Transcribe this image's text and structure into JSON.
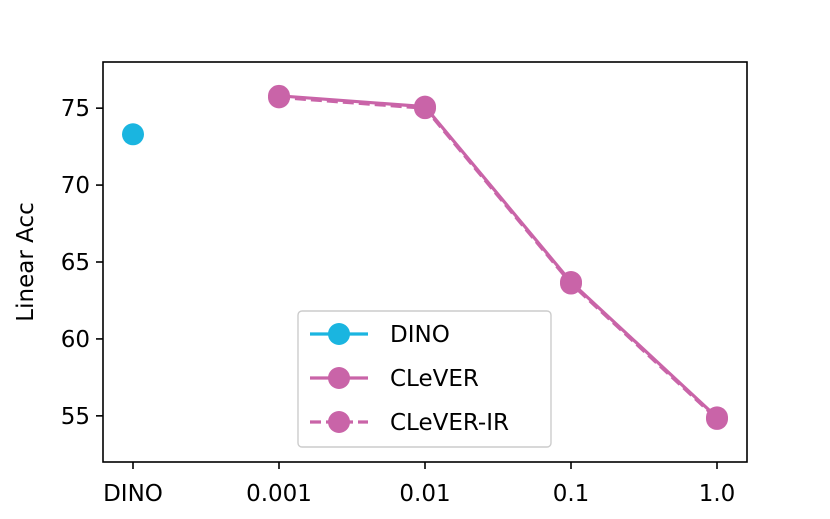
{
  "chart_data": {
    "type": "line",
    "categories": [
      "DINO",
      "0.001",
      "0.01",
      "0.1",
      "1.0"
    ],
    "ylabel": "Linear Acc",
    "xlabel": "",
    "ylim": [
      52,
      78
    ],
    "yticks": [
      55,
      60,
      65,
      70,
      75
    ],
    "grid": false,
    "legend_position": "bottom-center",
    "series": [
      {
        "name": "DINO",
        "color": "#1ab5e0",
        "dash": "solid",
        "values": [
          73.3,
          null,
          null,
          null,
          null
        ]
      },
      {
        "name": "CLeVER",
        "color": "#c964a8",
        "dash": "solid",
        "values": [
          null,
          75.8,
          75.1,
          63.7,
          54.9
        ]
      },
      {
        "name": "CLeVER-IR",
        "color": "#c964a8",
        "dash": "dashed",
        "values": [
          null,
          75.7,
          75.0,
          63.6,
          54.8
        ]
      }
    ]
  }
}
